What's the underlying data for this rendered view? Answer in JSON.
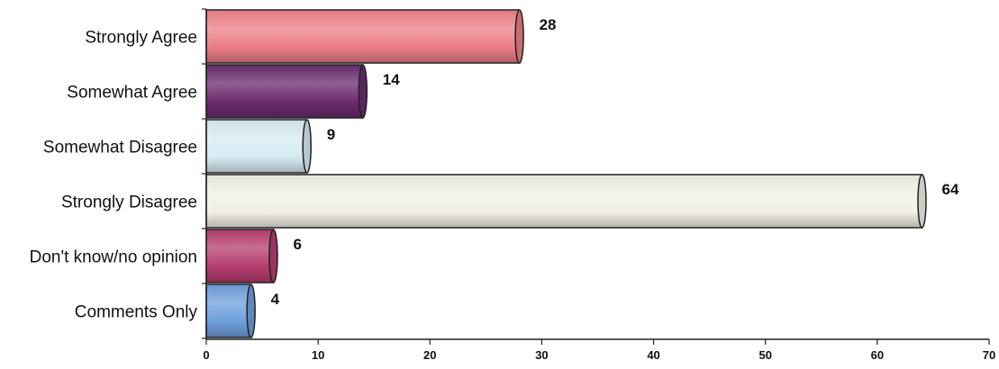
{
  "chart_data": {
    "type": "bar",
    "orientation": "horizontal",
    "style": "3d-cylinder",
    "categories": [
      "Strongly Agree",
      "Somewhat Agree",
      "Somewhat Disagree",
      "Strongly Disagree",
      "Don't know/no opinion",
      "Comments Only"
    ],
    "values": [
      28,
      14,
      9,
      64,
      6,
      4
    ],
    "data_labels": [
      "28",
      "14",
      "9",
      "64",
      "6",
      "4"
    ],
    "colors": [
      "#ec7f86",
      "#6a2b6e",
      "#d6ecf2",
      "#f2f0e4",
      "#b63d6f",
      "#6f9fdc"
    ],
    "xlim": [
      0,
      70
    ],
    "xticks": [
      0,
      10,
      20,
      30,
      40,
      50,
      60,
      70
    ],
    "xtick_labels": [
      "0",
      "10",
      "20",
      "30",
      "40",
      "50",
      "60",
      "70"
    ],
    "grid": false,
    "legend": "none",
    "title": "",
    "xlabel": "",
    "ylabel": ""
  }
}
